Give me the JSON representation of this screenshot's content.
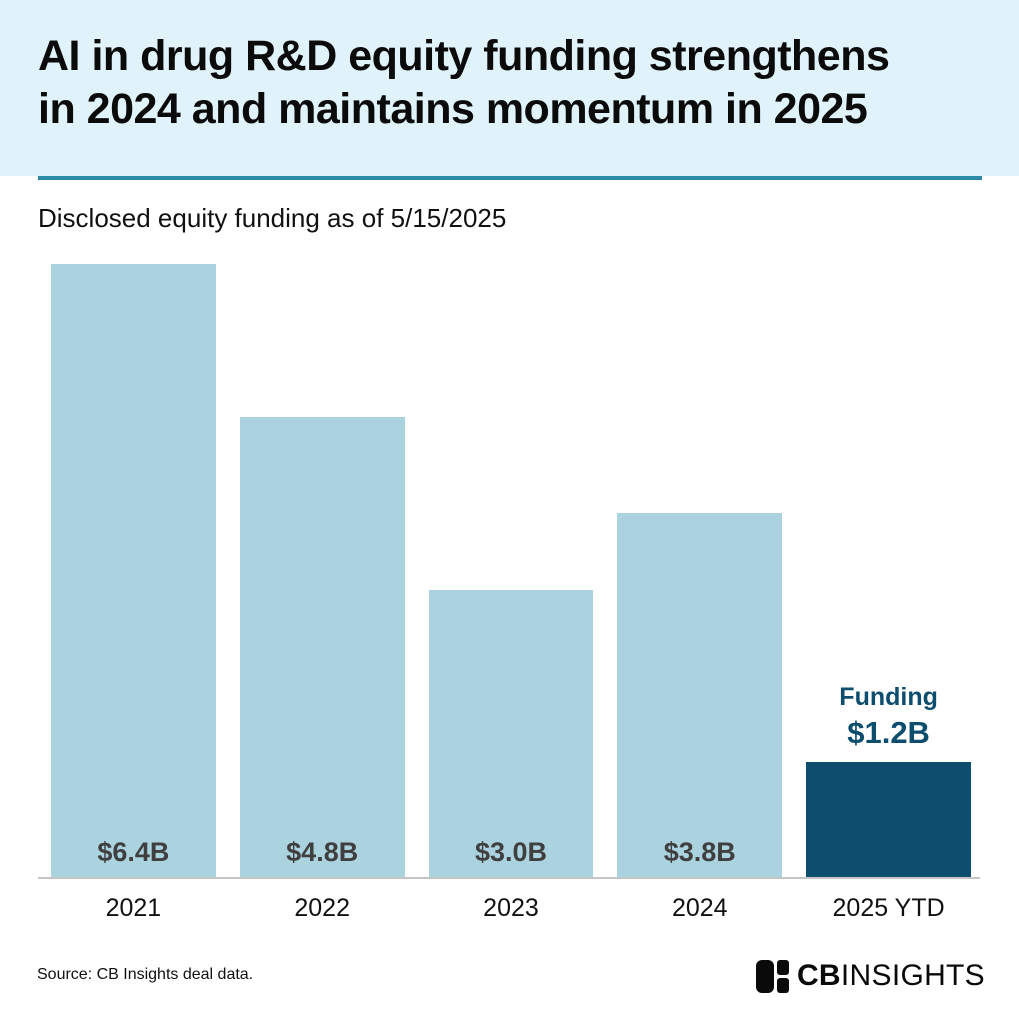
{
  "header": {
    "title_line1": "AI in drug R&D equity funding strengthens",
    "title_line2": "in 2024 and maintains momentum in 2025"
  },
  "subtitle": "Disclosed equity funding as of 5/15/2025",
  "chart_data": {
    "type": "bar",
    "title": "AI in drug R&D equity funding strengthens in 2024 and maintains momentum in 2025",
    "subtitle": "Disclosed equity funding as of 5/15/2025",
    "categories": [
      "2021",
      "2022",
      "2023",
      "2024",
      "2025 YTD"
    ],
    "values": [
      6.4,
      4.8,
      3.0,
      3.8,
      1.2
    ],
    "value_labels": [
      "$6.4B",
      "$4.8B",
      "$3.0B",
      "$3.8B",
      "$1.2B"
    ],
    "unit": "$B",
    "xlabel": "",
    "ylabel": "",
    "ylim": [
      0,
      6.4
    ],
    "grid": false,
    "legend": "none",
    "highlight_index": 4,
    "annotation": {
      "label": "Funding",
      "value": "$1.2B",
      "category": "2025 YTD"
    },
    "bar_colors": [
      "#abd3df",
      "#abd3df",
      "#abd3df",
      "#abd3df",
      "#0d4d6d"
    ]
  },
  "colors": {
    "header_bg": "#e1f3fa",
    "rule": "#2b8ba6",
    "bar_light": "#abd3df",
    "bar_dark": "#0d4d6d",
    "bar_label": "#3f3f3f",
    "axis_line": "#c5c5c5"
  },
  "footer": {
    "source": "Source: CB Insights deal data.",
    "logo": {
      "icon": "cbinsights-mark-icon",
      "text_bold": "CB",
      "text_light": "INSIGHTS"
    }
  }
}
